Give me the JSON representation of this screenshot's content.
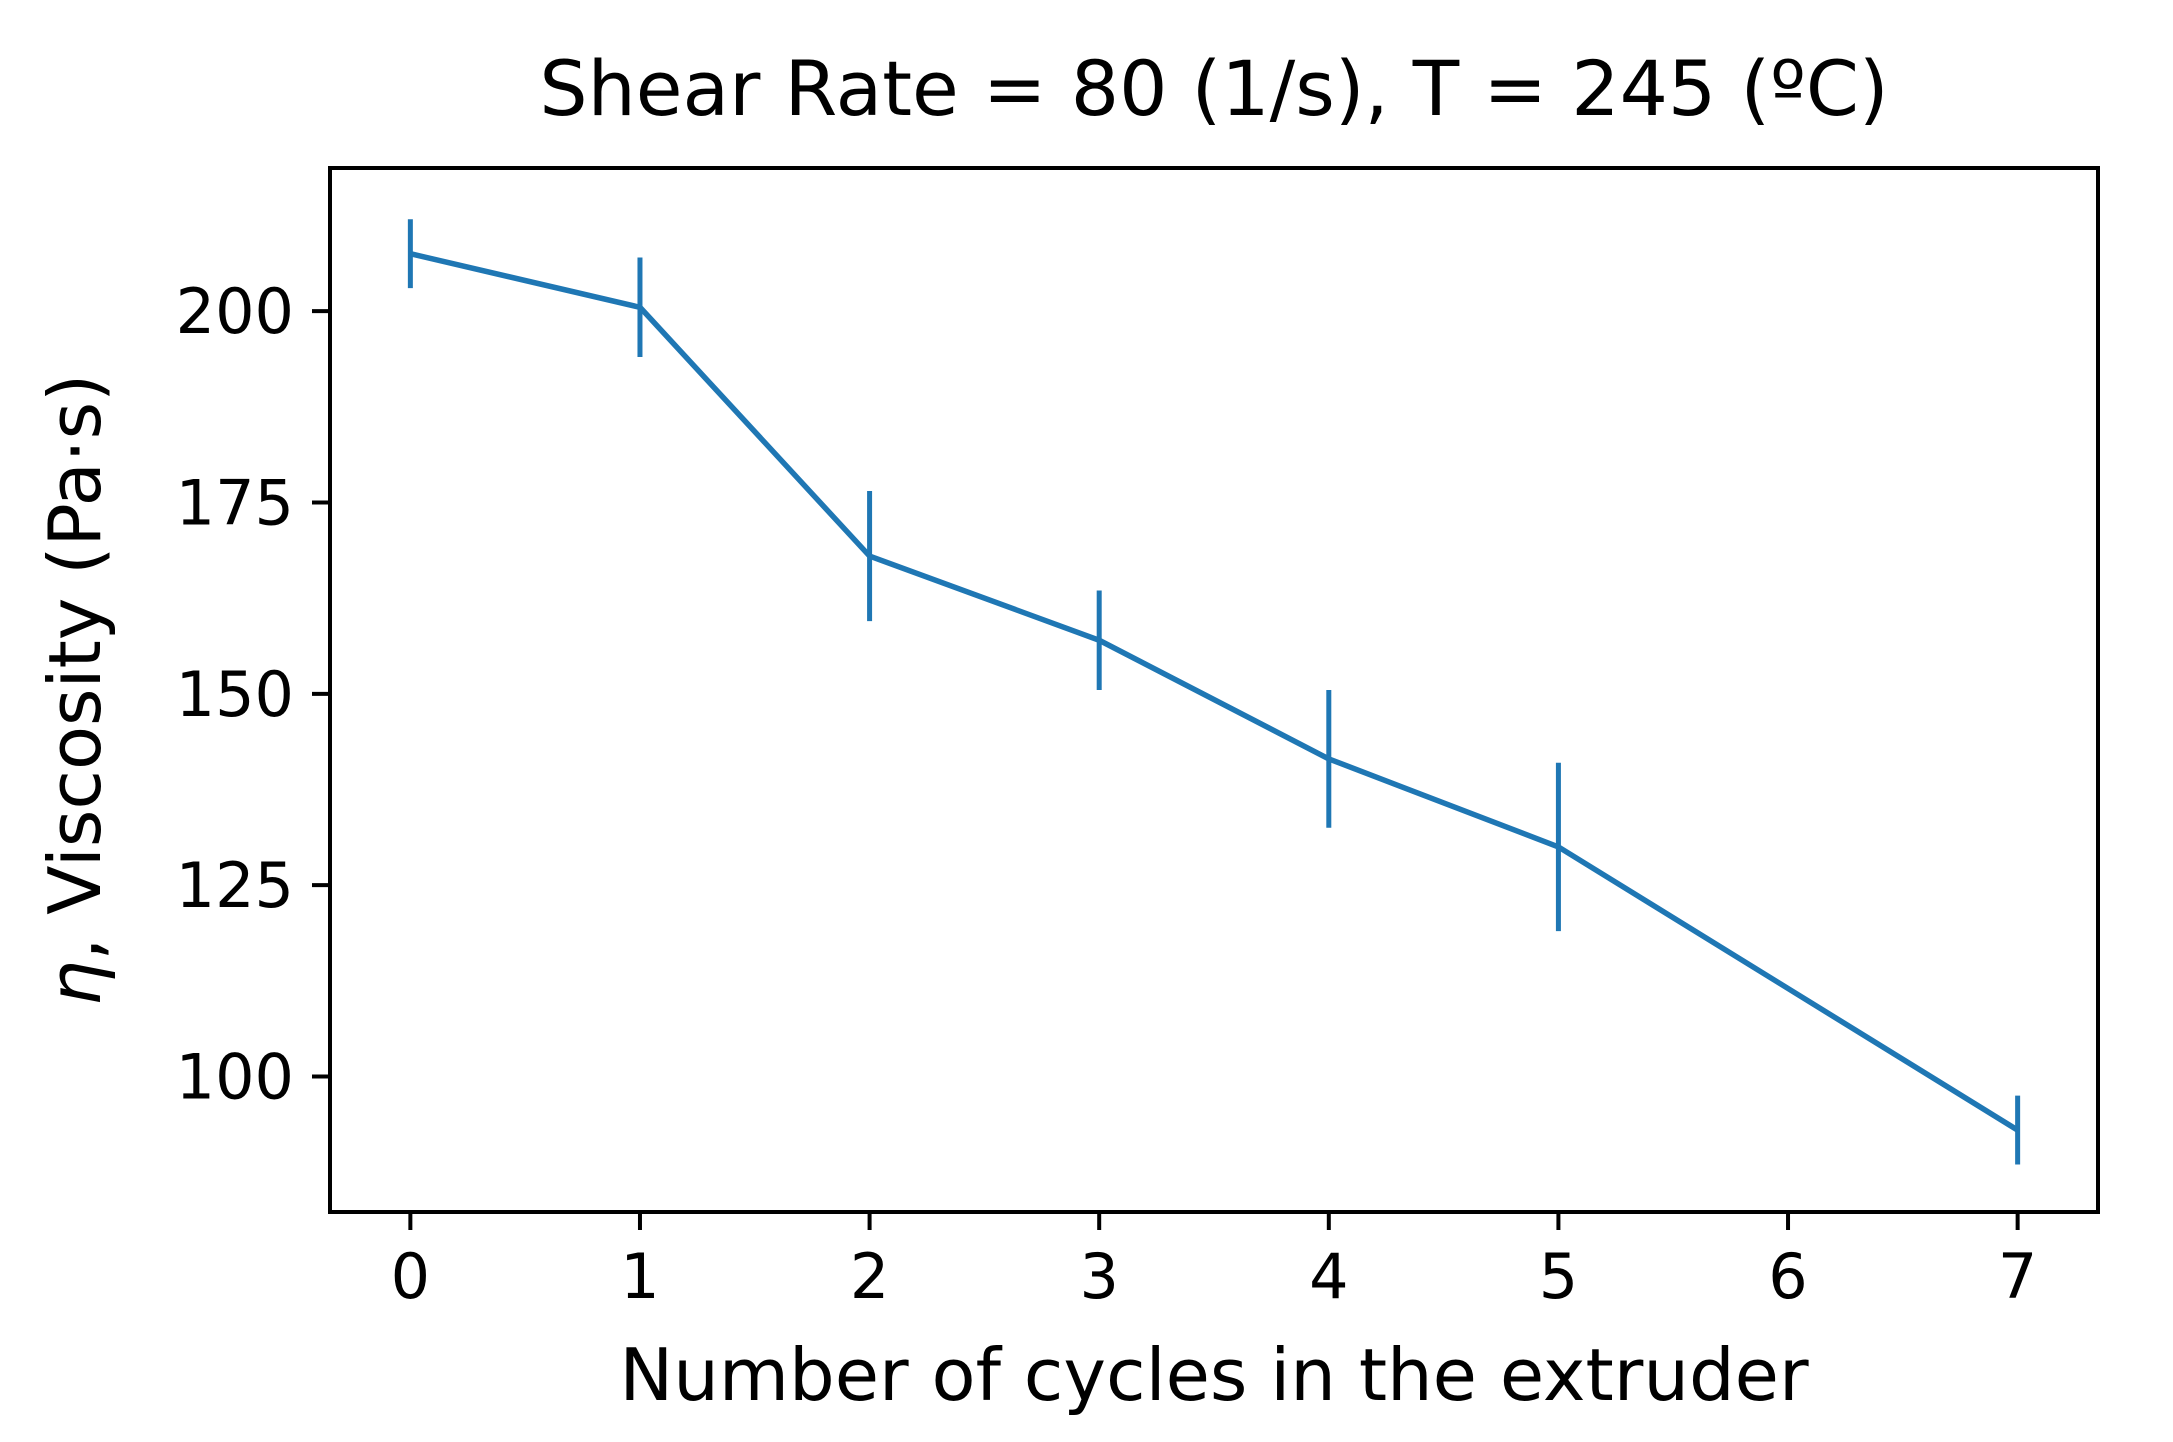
{
  "figure": {
    "background": "#ffffff"
  },
  "chart_data": {
    "type": "line",
    "title": "Shear Rate = 80 (1/s), T = 245 (ºC)",
    "xlabel": "Number of cycles in the extruder",
    "ylabel": "η, Viscosity (Pa·s)",
    "ylabel_symbol": "η",
    "ylabel_rest": ", Viscosity (Pa·s)",
    "x": [
      0,
      1,
      2,
      3,
      4,
      5,
      7
    ],
    "y": [
      207.5,
      200.5,
      168,
      157,
      141.5,
      130,
      93
    ],
    "yerr": [
      4.5,
      6.5,
      8.5,
      6.5,
      9,
      11,
      4.5
    ],
    "xticks": [
      "0",
      "1",
      "2",
      "3",
      "4",
      "5",
      "6",
      "7"
    ],
    "yticks": [
      "100",
      "125",
      "150",
      "175",
      "200"
    ],
    "xtick_values": [
      0,
      1,
      2,
      3,
      4,
      5,
      6,
      7
    ],
    "ytick_values": [
      100,
      125,
      150,
      175,
      200
    ],
    "xlim": [
      -0.35,
      7.35
    ],
    "ylim": [
      82.3,
      218.7
    ],
    "line_color": "#1f77b4",
    "axis_color": "#000000",
    "grid": false,
    "legend": "none",
    "marker": "none",
    "error_capsize": 0
  }
}
